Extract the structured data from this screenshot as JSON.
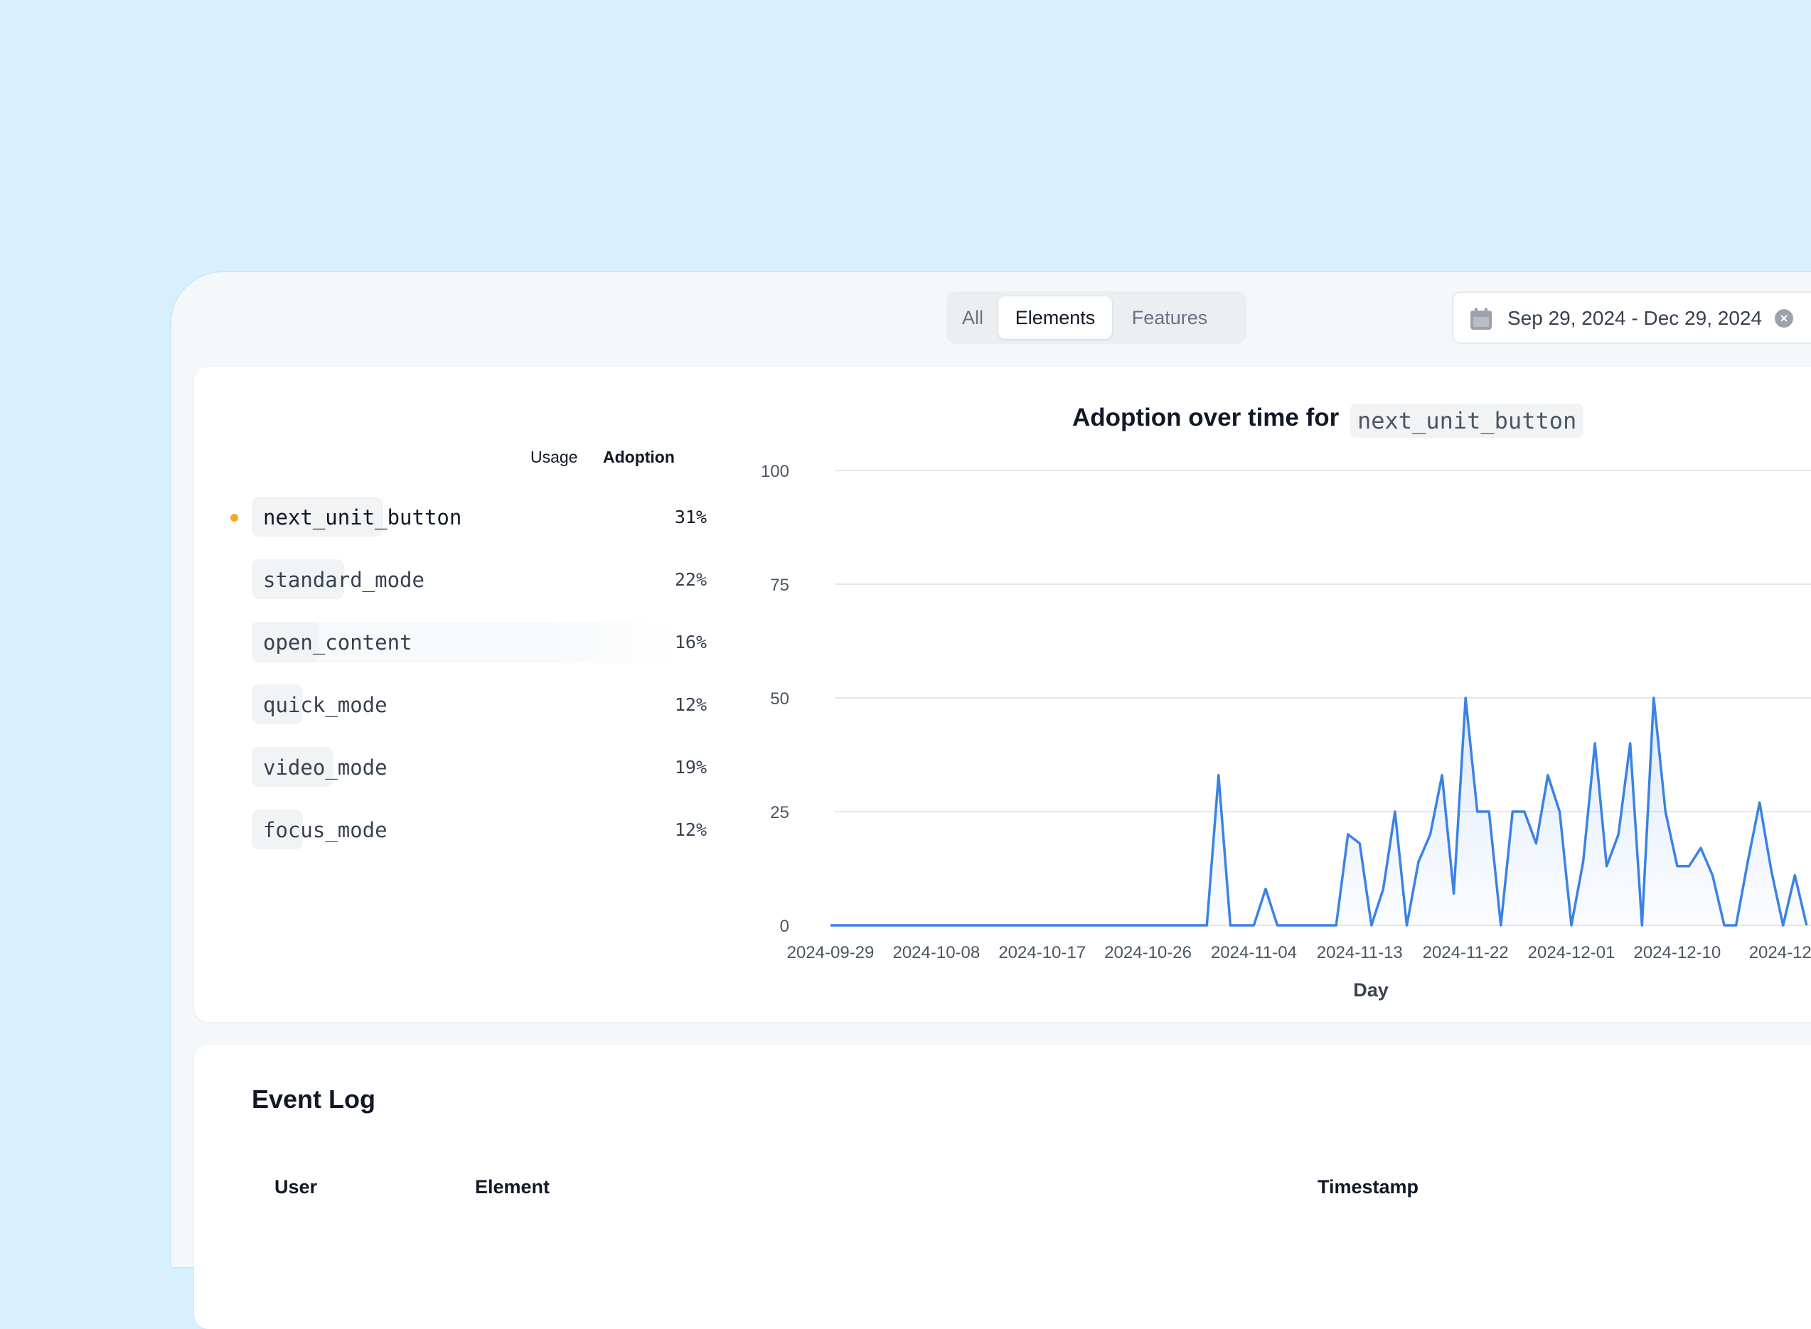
{
  "tabs": [
    {
      "label": "All",
      "active": false
    },
    {
      "label": "Elements",
      "active": true
    },
    {
      "label": "Features",
      "active": false
    }
  ],
  "date_range": {
    "label": "Sep 29, 2024 - Dec 29, 2024",
    "icon": "calendar-icon",
    "clear_icon": "clear-icon"
  },
  "elements_table": {
    "headers": {
      "usage": "Usage",
      "adoption": "Adoption"
    },
    "rows": [
      {
        "name": "next_unit_button",
        "adoption": "31%",
        "selected": true
      },
      {
        "name": "standard_mode",
        "adoption": "22%",
        "selected": false
      },
      {
        "name": "open_content",
        "adoption": "16%",
        "selected": false
      },
      {
        "name": "quick_mode",
        "adoption": "12%",
        "selected": false
      },
      {
        "name": "video_mode",
        "adoption": "19%",
        "selected": false
      },
      {
        "name": "focus_mode",
        "adoption": "12%",
        "selected": false
      }
    ],
    "selected_color": "#f5a623"
  },
  "chart": {
    "title_prefix": "Adoption over time for",
    "title_element": "next_unit_button"
  },
  "chart_data": {
    "type": "area",
    "title": "Adoption over time for next_unit_button",
    "xlabel": "Day",
    "ylabel": "",
    "ylim": [
      0,
      100
    ],
    "yticks": [
      0,
      25,
      50,
      75,
      100
    ],
    "xticks": [
      "2024-09-29",
      "2024-10-08",
      "2024-10-17",
      "2024-10-26",
      "2024-11-04",
      "2024-11-13",
      "2024-11-22",
      "2024-12-01",
      "2024-12-10",
      "2024-12-"
    ],
    "x_start": "2024-09-29",
    "grid": true,
    "color": "#3b82e6",
    "series": [
      {
        "values": [
          0,
          0,
          0,
          0,
          0,
          0,
          0,
          0,
          0,
          0,
          0,
          0,
          0,
          0,
          0,
          0,
          0,
          0,
          0,
          0,
          0,
          0,
          0,
          0,
          0,
          0,
          0,
          0,
          0,
          0,
          0,
          0,
          0,
          33,
          0,
          0,
          0,
          8,
          0,
          0,
          0,
          0,
          0,
          0,
          20,
          18,
          0,
          8,
          25,
          0,
          14,
          20,
          33,
          7,
          50,
          25,
          25,
          0,
          25,
          25,
          18,
          33,
          25,
          0,
          14,
          40,
          13,
          20,
          40,
          0,
          50,
          25,
          13,
          13,
          17,
          11,
          0,
          0,
          14,
          27,
          12,
          0,
          11,
          0
        ]
      }
    ]
  },
  "event_log": {
    "title": "Event Log",
    "columns": {
      "user": "User",
      "element": "Element",
      "timestamp": "Timestamp"
    }
  }
}
